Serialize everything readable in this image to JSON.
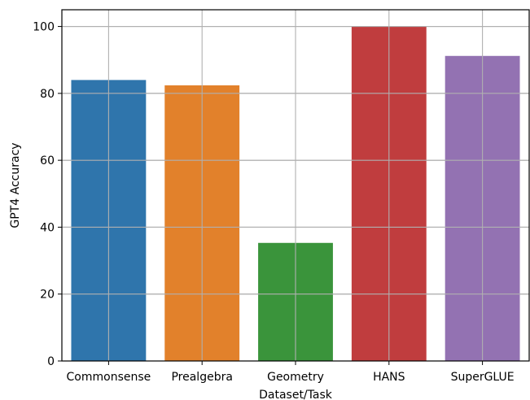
{
  "chart_data": {
    "type": "bar",
    "categories": [
      "Commonsense",
      "Prealgebra",
      "Geometry",
      "HANS",
      "SuperGLUE"
    ],
    "values": [
      84.0,
      82.4,
      35.3,
      100.0,
      91.2
    ],
    "colors": [
      "#2f75ac",
      "#e2812b",
      "#3a943b",
      "#c03d3e",
      "#9372b2"
    ],
    "xlabel": "Dataset/Task",
    "ylabel": "GPT4 Accuracy",
    "ylim": [
      0,
      105
    ],
    "yticks": [
      0,
      20,
      40,
      60,
      80,
      100
    ],
    "grid": true
  }
}
